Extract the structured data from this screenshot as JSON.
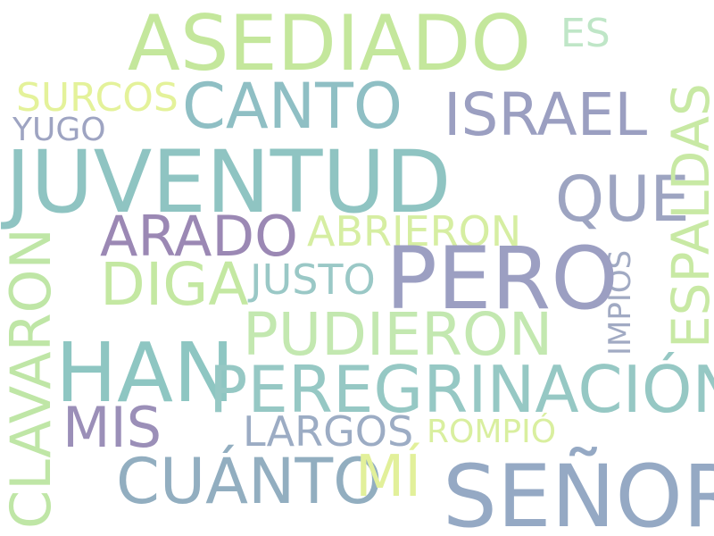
{
  "words": {
    "asediado": {
      "text": "ASEDIADO",
      "color": "#c4e79c"
    },
    "es": {
      "text": "ES",
      "color": "#bfe6c7"
    },
    "surcos": {
      "text": "SURCOS",
      "color": "#e4f29a"
    },
    "canto": {
      "text": "CANTO",
      "color": "#8fbfc4"
    },
    "israel": {
      "text": "ISRAEL",
      "color": "#9b9fc1"
    },
    "yugo": {
      "text": "YUGO",
      "color": "#9ea4c2"
    },
    "juventud": {
      "text": "JUVENTUD",
      "color": "#8fc4c2"
    },
    "que": {
      "text": "QUE",
      "color": "#9da4c1"
    },
    "espaldas": {
      "text": "ESPALDAS",
      "color": "#c8e9a4"
    },
    "arado": {
      "text": "ARADO",
      "color": "#9b88b4"
    },
    "abrieron": {
      "text": "ABRIERON",
      "color": "#d6eea2"
    },
    "clavaron": {
      "text": "CLAVARON",
      "color": "#bfe6a6"
    },
    "impios": {
      "text": "IMPÍOS",
      "color": "#a1aac3"
    },
    "pero": {
      "text": "PERO",
      "color": "#9c9fc2"
    },
    "diga": {
      "text": "DIGA",
      "color": "#c4e8a2"
    },
    "justo": {
      "text": "JUSTO",
      "color": "#9ac8c6"
    },
    "pudieron": {
      "text": "PUDIERON",
      "color": "#c3e8b0"
    },
    "han": {
      "text": "HAN",
      "color": "#8ec6c2"
    },
    "peregrinacion": {
      "text": "PEREGRINACIÓN",
      "color": "#96c8c4"
    },
    "mis": {
      "text": "MIS",
      "color": "#9b8fb8"
    },
    "largos": {
      "text": "LARGOS",
      "color": "#9cacc4"
    },
    "rompio": {
      "text": "ROMPIÓ",
      "color": "#d9ef9f"
    },
    "cuanto": {
      "text": "CUÁNTO",
      "color": "#92aec0"
    },
    "mi": {
      "text": "MÍ",
      "color": "#e2f09a"
    },
    "senor": {
      "text": "SEÑOR",
      "color": "#95a9c4"
    }
  }
}
